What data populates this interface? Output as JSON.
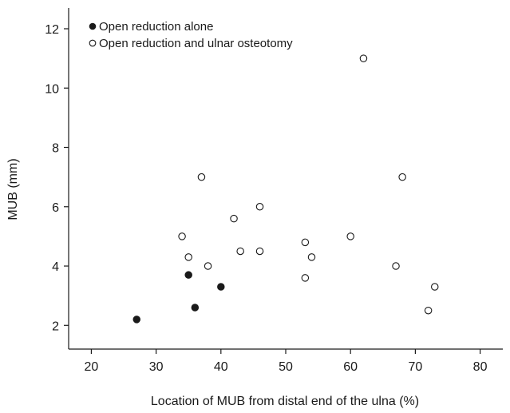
{
  "chart_data": {
    "type": "scatter",
    "xlabel": "Location of MUB from distal end of the ulna (%)",
    "ylabel": "MUB (mm)",
    "xlim": [
      16.5,
      83.5
    ],
    "ylim": [
      1.2,
      12.7
    ],
    "x_ticks": [
      "20",
      "30",
      "40",
      "50",
      "60",
      "70",
      "80"
    ],
    "x_tick_values": [
      20,
      30,
      40,
      50,
      60,
      70,
      80
    ],
    "y_ticks": [
      "2",
      "4",
      "6",
      "8",
      "10",
      "12"
    ],
    "y_tick_values": [
      2,
      4,
      6,
      8,
      10,
      12
    ],
    "legend_position": "top-left",
    "grid": false,
    "series": [
      {
        "name": "Open reduction alone",
        "marker": "filled-circle",
        "color": "#1a1a1a",
        "points": [
          {
            "x": 27,
            "y": 2.2
          },
          {
            "x": 35,
            "y": 3.7
          },
          {
            "x": 36,
            "y": 2.6
          },
          {
            "x": 40,
            "y": 3.3
          }
        ]
      },
      {
        "name": "Open reduction and ulnar osteotomy",
        "marker": "open-circle",
        "color": "#1a1a1a",
        "points": [
          {
            "x": 34,
            "y": 5.0
          },
          {
            "x": 35,
            "y": 4.3
          },
          {
            "x": 37,
            "y": 7.0
          },
          {
            "x": 38,
            "y": 4.0
          },
          {
            "x": 42,
            "y": 5.6
          },
          {
            "x": 43,
            "y": 4.5
          },
          {
            "x": 46,
            "y": 6.0
          },
          {
            "x": 46,
            "y": 4.5
          },
          {
            "x": 53,
            "y": 4.8
          },
          {
            "x": 53,
            "y": 3.6
          },
          {
            "x": 54,
            "y": 4.3
          },
          {
            "x": 60,
            "y": 5.0
          },
          {
            "x": 62,
            "y": 11.0
          },
          {
            "x": 67,
            "y": 4.0
          },
          {
            "x": 68,
            "y": 7.0
          },
          {
            "x": 72,
            "y": 2.5
          },
          {
            "x": 73,
            "y": 3.3
          }
        ]
      }
    ]
  }
}
